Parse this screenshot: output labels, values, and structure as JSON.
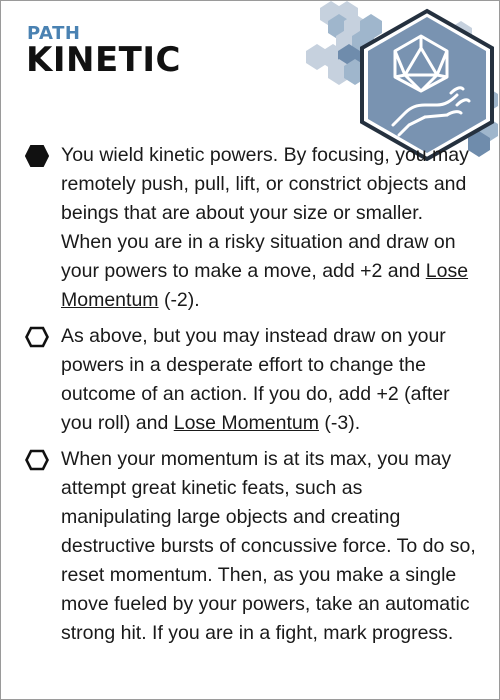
{
  "asset": {
    "category": "PATH",
    "title": "KINETIC",
    "icon": "hand-with-d20-die-icon",
    "colors": {
      "category_text": "#4a82b2",
      "hex_light": "#c6d1de",
      "hex_mid": "#9fb6cc",
      "hex_dark": "#6f8cac",
      "icon_frame": "#25313f"
    }
  },
  "abilities": [
    {
      "checked": true,
      "parts": [
        "You wield kinetic powers. By focusing, you may remotely push, pull, lift, or constrict objects and beings that are about your size or smaller. When you are in a risky situation and draw on your powers to make a move, add +2 and ",
        "Lose Momentum",
        " (-2)."
      ]
    },
    {
      "checked": false,
      "parts": [
        "As above, but you may instead draw on your powers in a desperate effort to change the outcome of an action. If you do, add +2 (after you roll) and ",
        "Lose Momentum",
        " (-3)."
      ]
    },
    {
      "checked": false,
      "parts": [
        "When your momentum is at its max, you may attempt great kinetic feats, such as manipulating large objects and creating destructive bursts of concussive force. To do so, reset momentum. Then, as you make a single move fueled by your powers, take an automatic strong hit. If you are in a fight, mark progress."
      ]
    }
  ]
}
